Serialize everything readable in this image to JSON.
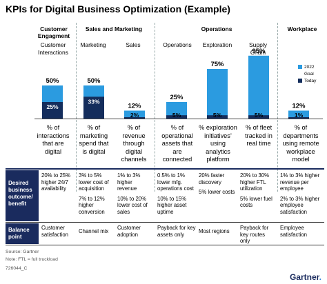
{
  "title": "KPIs for Digital Business Optimization (Example)",
  "groups": [
    {
      "label": "Customer Engagment"
    },
    {
      "label": "Sales and Marketing"
    },
    {
      "label": "Operations"
    },
    {
      "label": "Workplace"
    }
  ],
  "legend": {
    "goal_year": "2022",
    "goal": "Goal",
    "today": "Today"
  },
  "colors": {
    "goal": "#2b9be0",
    "today": "#142d5c",
    "navy": "#1a2b5e"
  },
  "chart_data": {
    "type": "bar",
    "ylim": [
      0,
      100
    ],
    "categories": [
      "Customer Interactions",
      "Marketing",
      "Sales",
      "Operations",
      "Exploration",
      "Supply Chain",
      ""
    ],
    "series": [
      {
        "name": "Goal",
        "values": [
          50,
          50,
          12,
          25,
          75,
          95,
          12
        ]
      },
      {
        "name": "Today",
        "values": [
          25,
          33,
          2,
          5,
          5,
          5,
          1
        ]
      }
    ],
    "descriptions": [
      "% of interactions that are digital",
      "% of marketing spend that is digital",
      "% of revenue through digital channels",
      "% of operational assets that are connected",
      "% exploration initiatives’ using analytics platform",
      "% of fleet tracked in real time",
      "% of departments using remote workplace model"
    ]
  },
  "table": {
    "row1_header": "Desired business outcome/ benefit",
    "row2_header": "Balance point",
    "outcomes": [
      [
        "20% to 25% higher 24/7 availability"
      ],
      [
        "3% to 5% lower cost of acquisition",
        "7% to 12% higher conversion"
      ],
      [
        "1% to 3% higher revenue",
        "10% to 20% lower cost of sales"
      ],
      [
        "0.5% to 1% lower mfg. operations cost",
        "10% to 15% higher asset uptime"
      ],
      [
        "20% faster discovery",
        "5% lower costs"
      ],
      [
        "20% to 30% higher FTL utilization",
        "5% lower fuel costs"
      ],
      [
        "1% to 3% higher revenue per employee",
        "2% to 3% higher employee satisfaction"
      ]
    ],
    "balance": [
      "Customer satisfaction",
      "Channel mix",
      "Customer adoption",
      "Payback for key assets only",
      "Most regions",
      "Payback for key routes only",
      "Employee satisfaction"
    ]
  },
  "footer": {
    "source": "Source: Gartner",
    "note": "Note: FTL = full truckload",
    "id": "726044_C"
  },
  "brand": "Gartner"
}
